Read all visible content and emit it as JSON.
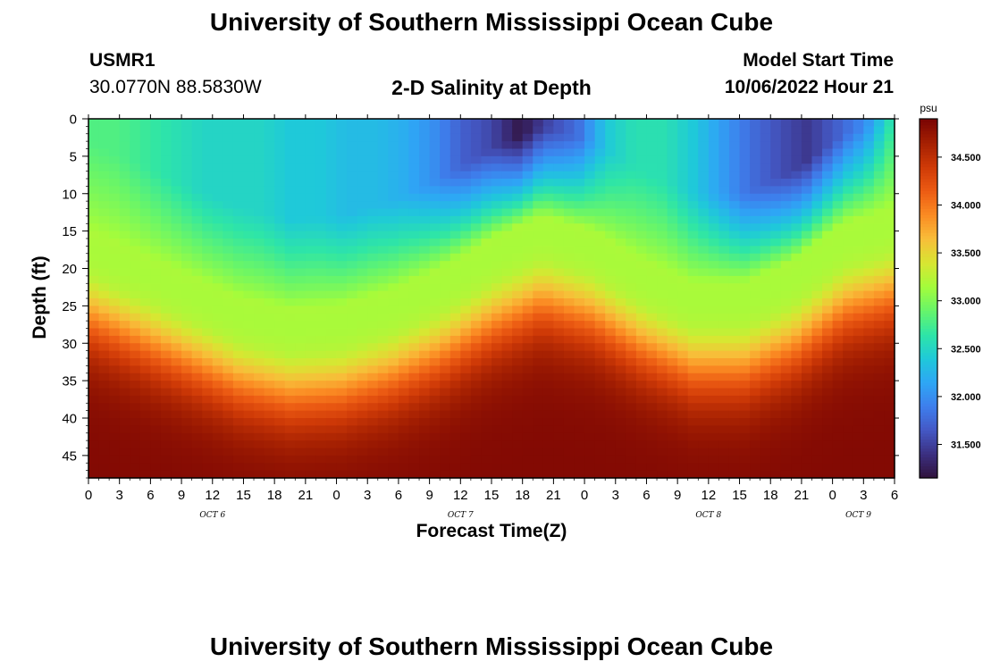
{
  "header": {
    "title": "University of Southern Mississippi Ocean Cube",
    "station_id": "USMR1",
    "station_coords": "30.0770N  88.5830W",
    "plot_title": "2-D Salinity at Depth",
    "model_label": "Model Start Time",
    "model_time": "10/06/2022 Hour 21"
  },
  "footer": {
    "title": "University of Southern Mississippi Ocean Cube"
  },
  "chart_data": {
    "type": "heatmap",
    "title": "2-D Salinity at Depth",
    "xlabel": "Forecast Time(Z)",
    "ylabel": "Depth (ft)",
    "x_range_hours": [
      0,
      78
    ],
    "ylim": [
      0,
      48
    ],
    "x_ticks": [
      "0",
      "3",
      "6",
      "9",
      "12",
      "15",
      "18",
      "21",
      "0",
      "3",
      "6",
      "9",
      "12",
      "15",
      "18",
      "21",
      "0",
      "3",
      "6",
      "9",
      "12",
      "15",
      "18",
      "21",
      "0",
      "3",
      "6"
    ],
    "y_ticks": [
      "0",
      "5",
      "10",
      "15",
      "20",
      "25",
      "30",
      "35",
      "40",
      "45"
    ],
    "day_labels": [
      {
        "label": "OCT 6",
        "hour": 12
      },
      {
        "label": "OCT 7",
        "hour": 36
      },
      {
        "label": "OCT 8",
        "hour": 60
      },
      {
        "label": "OCT 9",
        "hour": 74.5
      }
    ],
    "colorbar": {
      "unit": "psu",
      "min": 31.15,
      "max": 34.9,
      "ticks": [
        "31.500",
        "32.000",
        "32.500",
        "33.000",
        "33.500",
        "34.000",
        "34.500"
      ],
      "tick_values": [
        31.5,
        32.0,
        32.5,
        33.0,
        33.5,
        34.0,
        34.5
      ],
      "colors": [
        "#30123b",
        "#3b2f80",
        "#4458c4",
        "#3e7eec",
        "#2ea6f5",
        "#1fc9d9",
        "#2ee5a7",
        "#67f56a",
        "#a4fc3b",
        "#d8e632",
        "#f8bd39",
        "#fb8b23",
        "#ec5b13",
        "#cf3a07",
        "#a52002",
        "#7a0403"
      ]
    },
    "surface_salinity_psu": [
      32.8,
      32.8,
      32.7,
      32.6,
      32.5,
      32.5,
      32.5,
      32.4,
      32.4,
      32.3,
      32.3,
      32.2,
      32.0,
      31.7,
      31.55,
      31.2,
      31.55,
      31.8,
      32.4,
      32.6,
      32.6,
      32.4,
      32.1,
      31.8,
      31.6,
      31.45,
      31.7,
      32.0,
      32.7
    ],
    "halocline_depth_ft": [
      27,
      30,
      33,
      36,
      37.5,
      37,
      35,
      32,
      28,
      25,
      27,
      31,
      34,
      34,
      31,
      26,
      24
    ],
    "bottom_salinity_psu": 34.85,
    "series_hours": [
      0,
      27,
      78
    ]
  }
}
